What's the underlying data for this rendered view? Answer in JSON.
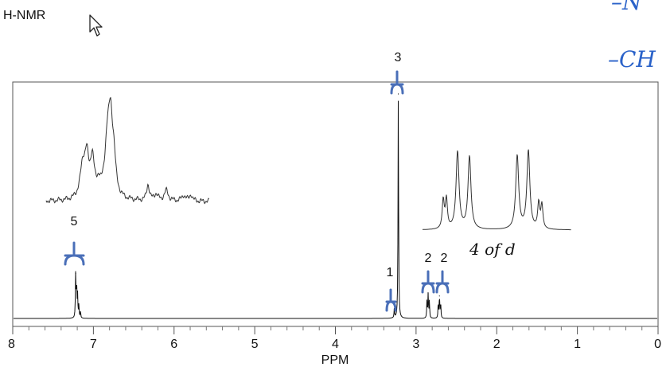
{
  "title": "H-NMR",
  "chart_data": {
    "type": "line",
    "xlabel": "PPM",
    "ylabel": "",
    "xlim": [
      8,
      0
    ],
    "x_ticks": [
      8,
      7,
      6,
      5,
      4,
      3,
      2,
      1,
      0
    ],
    "peaks": [
      {
        "ppm": 7.22,
        "relative_height": 0.2,
        "integration": "5"
      },
      {
        "ppm": 3.27,
        "relative_height": 0.04,
        "integration": "1"
      },
      {
        "ppm": 3.22,
        "relative_height": 1.0,
        "integration": "3"
      },
      {
        "ppm": 2.85,
        "relative_height": 0.11,
        "integration": "2"
      },
      {
        "ppm": 2.71,
        "relative_height": 0.1,
        "integration": "2"
      }
    ],
    "grid": false,
    "legend": "none"
  },
  "annotations": {
    "multiplet_note": "4 of d",
    "margin_notes": [
      "–N",
      "–CH"
    ]
  }
}
